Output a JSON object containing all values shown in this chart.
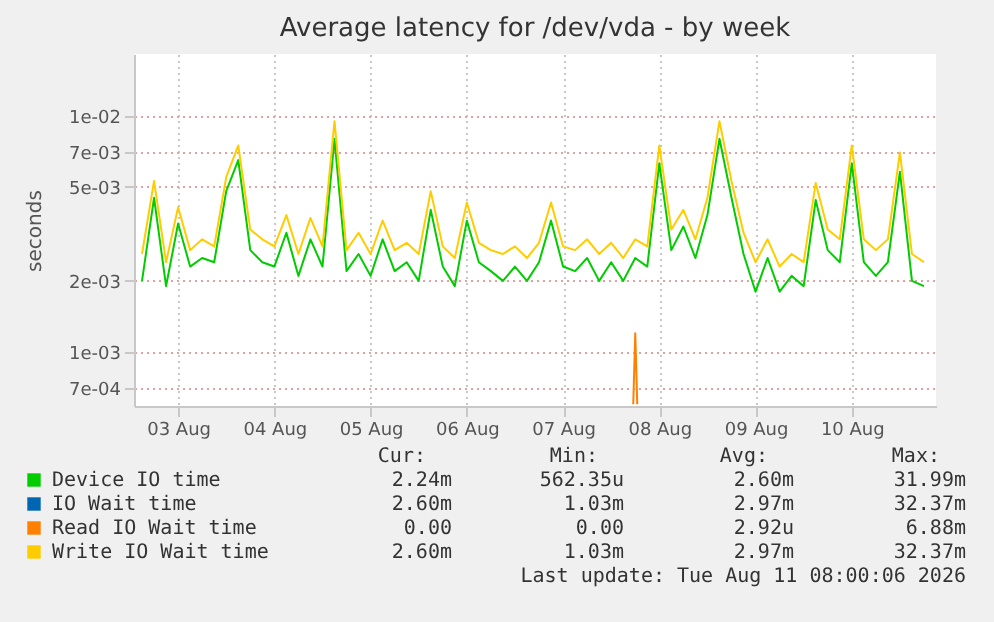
{
  "chart_data": {
    "type": "line",
    "title": "Average latency for /dev/vda - by week",
    "ylabel": "seconds",
    "log": true,
    "grid": true,
    "legend": "bottom",
    "line_style": "solid",
    "marker": "none",
    "xlim": [
      "2026-08-03T01:00",
      "2026-08-11T09:00"
    ],
    "xticks": [
      {
        "value": "2026-08-03T12:00",
        "label": "03 Aug"
      },
      {
        "value": "2026-08-04T12:00",
        "label": "04 Aug"
      },
      {
        "value": "2026-08-05T12:00",
        "label": "05 Aug"
      },
      {
        "value": "2026-08-06T12:00",
        "label": "06 Aug"
      },
      {
        "value": "2026-08-07T12:00",
        "label": "07 Aug"
      },
      {
        "value": "2026-08-08T12:00",
        "label": "08 Aug"
      },
      {
        "value": "2026-08-09T12:00",
        "label": "09 Aug"
      },
      {
        "value": "2026-08-10T12:00",
        "label": "10 Aug"
      }
    ],
    "ylim": [
      0.00059,
      0.0183
    ],
    "yticks": [
      {
        "value": 0.0007,
        "label": "7e-04"
      },
      {
        "value": 0.001,
        "label": "1e-03"
      },
      {
        "value": 0.002,
        "label": "2e-03"
      },
      {
        "value": 0.005,
        "label": "5e-03"
      },
      {
        "value": 0.007,
        "label": "7e-03"
      },
      {
        "value": 0.01,
        "label": "1e-02"
      }
    ],
    "x": [
      "2026-08-03T03:00",
      "2026-08-03T06:00",
      "2026-08-03T09:00",
      "2026-08-03T12:00",
      "2026-08-03T15:00",
      "2026-08-03T18:00",
      "2026-08-03T21:00",
      "2026-08-04T00:00",
      "2026-08-04T03:00",
      "2026-08-04T06:00",
      "2026-08-04T09:00",
      "2026-08-04T12:00",
      "2026-08-04T15:00",
      "2026-08-04T18:00",
      "2026-08-04T21:00",
      "2026-08-05T00:00",
      "2026-08-05T03:00",
      "2026-08-05T06:00",
      "2026-08-05T09:00",
      "2026-08-05T12:00",
      "2026-08-05T15:00",
      "2026-08-05T18:00",
      "2026-08-05T21:00",
      "2026-08-06T00:00",
      "2026-08-06T03:00",
      "2026-08-06T06:00",
      "2026-08-06T09:00",
      "2026-08-06T12:00",
      "2026-08-06T15:00",
      "2026-08-06T18:00",
      "2026-08-06T21:00",
      "2026-08-07T00:00",
      "2026-08-07T03:00",
      "2026-08-07T06:00",
      "2026-08-07T09:00",
      "2026-08-07T12:00",
      "2026-08-07T15:00",
      "2026-08-07T18:00",
      "2026-08-07T21:00",
      "2026-08-08T00:00",
      "2026-08-08T03:00",
      "2026-08-08T06:00",
      "2026-08-08T09:00",
      "2026-08-08T12:00",
      "2026-08-08T15:00",
      "2026-08-08T18:00",
      "2026-08-08T21:00",
      "2026-08-09T00:00",
      "2026-08-09T03:00",
      "2026-08-09T06:00",
      "2026-08-09T09:00",
      "2026-08-09T12:00",
      "2026-08-09T15:00",
      "2026-08-09T18:00",
      "2026-08-09T21:00",
      "2026-08-10T00:00",
      "2026-08-10T03:00",
      "2026-08-10T06:00",
      "2026-08-10T09:00",
      "2026-08-10T12:00",
      "2026-08-10T15:00",
      "2026-08-10T18:00",
      "2026-08-10T21:00",
      "2026-08-11T00:00",
      "2026-08-11T03:00",
      "2026-08-11T06:00"
    ],
    "series": [
      {
        "name": "Device IO time",
        "color": "#00cc00",
        "values": [
          0.002,
          0.0045,
          0.0019,
          0.0035,
          0.0023,
          0.0025,
          0.0024,
          0.0048,
          0.0065,
          0.0027,
          0.0024,
          0.0023,
          0.0032,
          0.0021,
          0.003,
          0.0023,
          0.008,
          0.0022,
          0.0026,
          0.0021,
          0.003,
          0.0022,
          0.0024,
          0.002,
          0.004,
          0.0023,
          0.0019,
          0.0036,
          0.0024,
          0.0022,
          0.002,
          0.0023,
          0.002,
          0.0024,
          0.0036,
          0.0023,
          0.0022,
          0.0025,
          0.002,
          0.0024,
          0.002,
          0.0025,
          0.0023,
          0.0063,
          0.0027,
          0.0034,
          0.0025,
          0.0038,
          0.008,
          0.0045,
          0.0026,
          0.0018,
          0.0025,
          0.0018,
          0.0021,
          0.0019,
          0.0044,
          0.0027,
          0.0024,
          0.0063,
          0.0024,
          0.0021,
          0.0024,
          0.0058,
          0.002,
          0.0019
        ]
      },
      {
        "name": "IO Wait time",
        "color": "#0066b3",
        "values": [
          null,
          null,
          null,
          null,
          null,
          null,
          null,
          null,
          null,
          null,
          null,
          null,
          null,
          null,
          null,
          null,
          null,
          null,
          null,
          null,
          null,
          null,
          null,
          null,
          null,
          null,
          null,
          null,
          null,
          null,
          null,
          null,
          null,
          null,
          null,
          null,
          null,
          null,
          null,
          null,
          null,
          null,
          null,
          null,
          null,
          null,
          null,
          null,
          null,
          null,
          null,
          null,
          null,
          null,
          null,
          null,
          null,
          null,
          null,
          null,
          null,
          null,
          null,
          null,
          null,
          null
        ]
      },
      {
        "name": "Read IO Wait time",
        "color": "#ff8000",
        "x": [
          "2026-08-08T05:30",
          "2026-08-08T06:00",
          "2026-08-08T06:30"
        ],
        "values": [
          0.0006,
          0.0012,
          0.0006
        ]
      },
      {
        "name": "Write IO Wait time",
        "color": "#ffcc00",
        "values": [
          0.0026,
          0.0053,
          0.0024,
          0.0041,
          0.0027,
          0.003,
          0.0028,
          0.0055,
          0.0075,
          0.0033,
          0.003,
          0.0028,
          0.0038,
          0.0026,
          0.0037,
          0.0028,
          0.0095,
          0.0027,
          0.0032,
          0.0026,
          0.0036,
          0.0027,
          0.0029,
          0.0026,
          0.0048,
          0.0028,
          0.0025,
          0.0043,
          0.0029,
          0.0027,
          0.0026,
          0.0028,
          0.0025,
          0.0029,
          0.0043,
          0.0028,
          0.0027,
          0.003,
          0.0026,
          0.0029,
          0.0025,
          0.003,
          0.0028,
          0.0075,
          0.0033,
          0.004,
          0.003,
          0.0045,
          0.0095,
          0.0053,
          0.0032,
          0.0024,
          0.003,
          0.0023,
          0.0026,
          0.0024,
          0.0052,
          0.0033,
          0.003,
          0.0075,
          0.003,
          0.0027,
          0.003,
          0.007,
          0.0026,
          0.0024
        ]
      }
    ],
    "annotations": [
      "Cur:",
      "Min:",
      "Avg:",
      "Max:",
      "2.24m",
      "562.35u",
      "2.60m",
      "31.99m",
      "2.60m",
      "1.03m",
      "2.97m",
      "32.37m",
      "0.00",
      "0.00",
      "2.92u",
      "6.88m",
      "2.60m",
      "1.03m",
      "2.97m",
      "32.37m",
      "Last update: Tue Aug 11 08:00:06 2026"
    ]
  }
}
